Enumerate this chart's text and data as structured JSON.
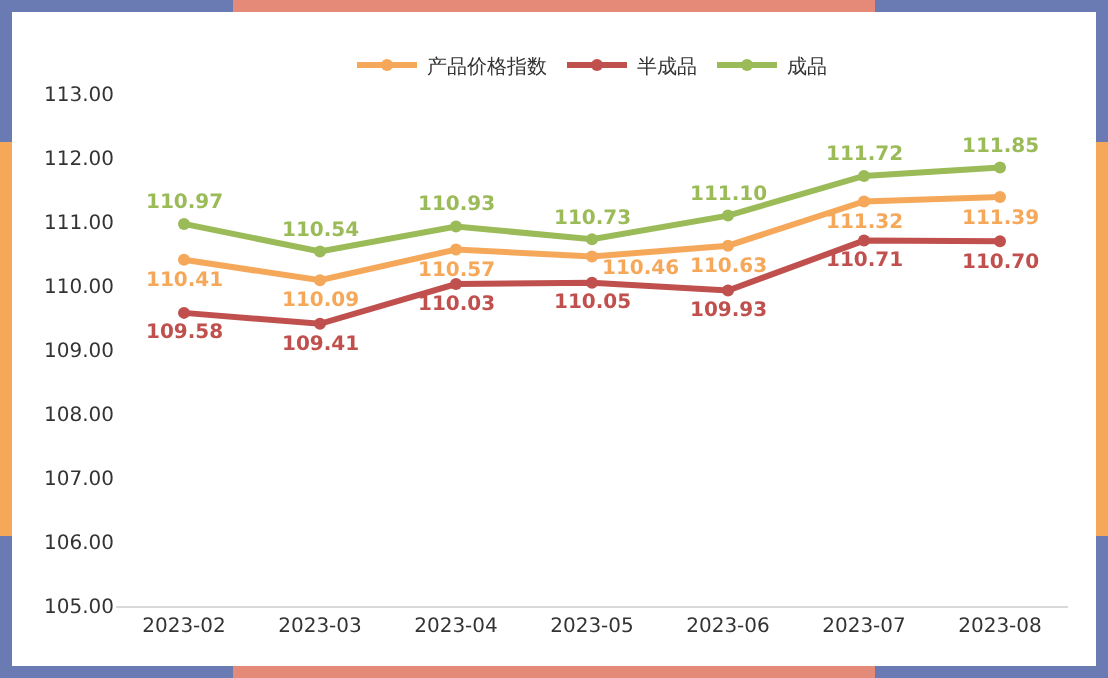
{
  "chart_data": {
    "type": "line",
    "categories": [
      "2023-02",
      "2023-03",
      "2023-04",
      "2023-05",
      "2023-06",
      "2023-07",
      "2023-08"
    ],
    "series": [
      {
        "name": "产品价格指数",
        "color": "#f6a85a",
        "values": [
          110.41,
          110.09,
          110.57,
          110.46,
          110.63,
          111.32,
          111.39
        ],
        "value_labels": [
          "110.41",
          "110.09",
          "110.57",
          "110.46",
          "110.63",
          "111.32",
          "111.39"
        ]
      },
      {
        "name": "半成品",
        "color": "#c0504d",
        "values": [
          109.58,
          109.41,
          110.03,
          110.05,
          109.93,
          110.71,
          110.7
        ],
        "value_labels": [
          "109.58",
          "109.41",
          "110.03",
          "110.05",
          "109.93",
          "110.71",
          "110.70"
        ]
      },
      {
        "name": "成品",
        "color": "#9bbb59",
        "values": [
          110.97,
          110.54,
          110.93,
          110.73,
          111.1,
          111.72,
          111.85
        ],
        "value_labels": [
          "110.97",
          "110.54",
          "110.93",
          "110.73",
          "111.10",
          "111.72",
          "111.85"
        ]
      }
    ],
    "ylim": [
      105,
      113
    ],
    "yticks": [
      {
        "value": 105,
        "label": "105.00"
      },
      {
        "value": 106,
        "label": "106.00"
      },
      {
        "value": 107,
        "label": "107.00"
      },
      {
        "value": 108,
        "label": "108.00"
      },
      {
        "value": 109,
        "label": "109.00"
      },
      {
        "value": 110,
        "label": "110.00"
      },
      {
        "value": 111,
        "label": "111.00"
      },
      {
        "value": 112,
        "label": "112.00"
      },
      {
        "value": 113,
        "label": "113.00"
      }
    ],
    "grid": false,
    "legend": "top",
    "marker": "circle",
    "line_style": "solid"
  }
}
